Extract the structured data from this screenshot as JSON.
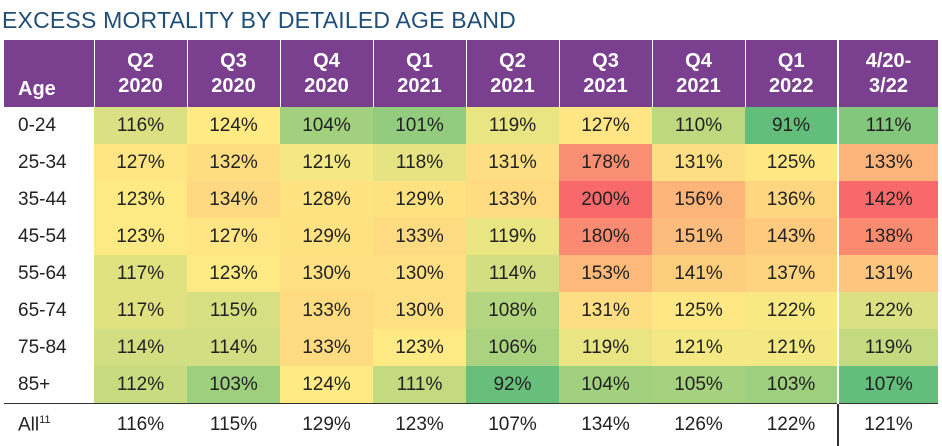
{
  "title": "EXCESS MORTALITY BY DETAILED AGE BAND",
  "chart_data": {
    "type": "heatmap",
    "title": "EXCESS MORTALITY BY DETAILED AGE BAND",
    "row_header": "Age",
    "columns": [
      {
        "line1": "Q2",
        "line2": "2020"
      },
      {
        "line1": "Q3",
        "line2": "2020"
      },
      {
        "line1": "Q4",
        "line2": "2020"
      },
      {
        "line1": "Q1",
        "line2": "2021"
      },
      {
        "line1": "Q2",
        "line2": "2021"
      },
      {
        "line1": "Q3",
        "line2": "2021"
      },
      {
        "line1": "Q4",
        "line2": "2021"
      },
      {
        "line1": "Q1",
        "line2": "2022"
      },
      {
        "line1": "4/20-",
        "line2": "3/22"
      }
    ],
    "rows": [
      {
        "label": "0-24",
        "values": [
          116,
          124,
          104,
          101,
          119,
          127,
          110,
          91,
          111
        ]
      },
      {
        "label": "25-34",
        "values": [
          127,
          132,
          121,
          118,
          131,
          178,
          131,
          125,
          133
        ]
      },
      {
        "label": "35-44",
        "values": [
          123,
          134,
          128,
          129,
          133,
          200,
          156,
          136,
          142
        ]
      },
      {
        "label": "45-54",
        "values": [
          123,
          127,
          129,
          133,
          119,
          180,
          151,
          143,
          138
        ]
      },
      {
        "label": "55-64",
        "values": [
          117,
          123,
          130,
          130,
          114,
          153,
          141,
          137,
          131
        ]
      },
      {
        "label": "65-74",
        "values": [
          117,
          115,
          133,
          130,
          108,
          131,
          125,
          122,
          122
        ]
      },
      {
        "label": "75-84",
        "values": [
          114,
          114,
          133,
          123,
          106,
          119,
          121,
          121,
          119
        ]
      },
      {
        "label": "85+",
        "values": [
          112,
          103,
          124,
          111,
          92,
          104,
          105,
          103,
          107
        ]
      }
    ],
    "total_row": {
      "label": "All",
      "footnote": "11",
      "values": [
        116,
        115,
        129,
        123,
        107,
        134,
        126,
        122,
        121
      ]
    },
    "value_suffix": "%",
    "color_scale": {
      "low": "#63be7b",
      "mid": "#ffeb84",
      "high": "#f8696b"
    }
  }
}
